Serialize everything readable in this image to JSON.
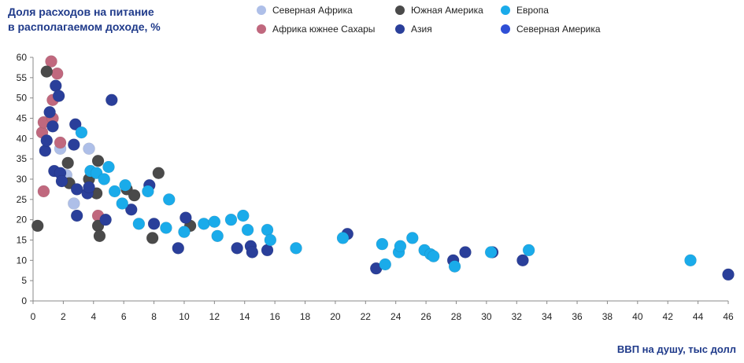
{
  "chart_data": {
    "type": "scatter",
    "title_lines": [
      "Доля расходов на питание",
      "в располагаемом доходе, %"
    ],
    "xlabel": "ВВП на душу, тыс долл",
    "ylabel": "",
    "xlim": [
      0,
      46
    ],
    "ylim": [
      0,
      60
    ],
    "x_ticks": [
      "0",
      "2",
      "4",
      "6",
      "8",
      "10",
      "12",
      "14",
      "16",
      "18",
      "20",
      "22",
      "24",
      "26",
      "28",
      "30",
      "32",
      "34",
      "36",
      "38",
      "40",
      "42",
      "44",
      "46"
    ],
    "y_ticks": [
      "0",
      "5",
      "10",
      "15",
      "20",
      "25",
      "30",
      "35",
      "40",
      "45",
      "50",
      "55",
      "60"
    ],
    "grid": false,
    "legend_position": "top",
    "series": [
      {
        "name": "Северная Африка",
        "color": "#aebfe8",
        "points": [
          [
            1.8,
            37.5
          ],
          [
            2.2,
            31
          ],
          [
            2.7,
            24
          ],
          [
            3.7,
            37.5
          ]
        ]
      },
      {
        "name": "Африка южнее Сахары",
        "color": "#c0687e",
        "points": [
          [
            0.6,
            41.5
          ],
          [
            0.7,
            44
          ],
          [
            0.7,
            27
          ],
          [
            1.2,
            59
          ],
          [
            1.3,
            49.5
          ],
          [
            1.3,
            45
          ],
          [
            1.6,
            56
          ],
          [
            1.8,
            39
          ],
          [
            4.3,
            21
          ]
        ]
      },
      {
        "name": "Южная Америка",
        "color": "#4a4a4a",
        "points": [
          [
            0.3,
            18.5
          ],
          [
            0.9,
            56.5
          ],
          [
            2.3,
            34
          ],
          [
            2.4,
            29
          ],
          [
            3.7,
            30
          ],
          [
            4.2,
            26.5
          ],
          [
            4.3,
            34.5
          ],
          [
            4.3,
            18.5
          ],
          [
            4.4,
            16
          ],
          [
            6.2,
            27.5
          ],
          [
            6.7,
            26
          ],
          [
            7.9,
            15.5
          ],
          [
            8.3,
            31.5
          ],
          [
            10.4,
            18.5
          ]
        ]
      },
      {
        "name": "Азия",
        "color": "#2a3f9a",
        "points": [
          [
            0.8,
            37
          ],
          [
            0.9,
            39.5
          ],
          [
            1.1,
            46.5
          ],
          [
            1.3,
            43
          ],
          [
            1.4,
            32
          ],
          [
            1.5,
            53
          ],
          [
            1.7,
            50.5
          ],
          [
            1.8,
            31.5
          ],
          [
            1.9,
            29.5
          ],
          [
            2.7,
            38.5
          ],
          [
            2.8,
            43.5
          ],
          [
            2.9,
            21
          ],
          [
            2.9,
            27.5
          ],
          [
            3.6,
            26.5
          ],
          [
            3.7,
            28
          ],
          [
            4.8,
            20
          ],
          [
            5.2,
            49.5
          ],
          [
            6.5,
            22.5
          ],
          [
            7.7,
            28.5
          ],
          [
            8,
            19
          ],
          [
            9.6,
            13
          ],
          [
            10.1,
            20.5
          ],
          [
            13.5,
            13
          ],
          [
            14.4,
            13.5
          ],
          [
            14.5,
            12
          ],
          [
            15.5,
            12.5
          ],
          [
            20.8,
            16.5
          ],
          [
            22.7,
            8
          ],
          [
            27.8,
            10
          ],
          [
            28.6,
            12
          ],
          [
            30.4,
            12
          ],
          [
            32.4,
            10
          ],
          [
            46,
            6.5
          ]
        ]
      },
      {
        "name": "Европа",
        "color": "#1aabea",
        "points": [
          [
            3.2,
            41.5
          ],
          [
            3.8,
            32
          ],
          [
            4.2,
            31.5
          ],
          [
            4.7,
            30
          ],
          [
            5,
            33
          ],
          [
            5.4,
            27
          ],
          [
            5.9,
            24
          ],
          [
            6.1,
            28.5
          ],
          [
            7,
            19
          ],
          [
            7.6,
            27
          ],
          [
            8.8,
            18
          ],
          [
            9,
            25
          ],
          [
            10,
            17
          ],
          [
            11.3,
            19
          ],
          [
            12,
            19.5
          ],
          [
            12.2,
            16
          ],
          [
            13.1,
            20
          ],
          [
            13.9,
            21
          ],
          [
            14.2,
            17.5
          ],
          [
            15.5,
            17.5
          ],
          [
            15.7,
            15
          ],
          [
            17.4,
            13
          ],
          [
            20.5,
            15.5
          ],
          [
            23.1,
            14
          ],
          [
            23.3,
            9
          ],
          [
            24.2,
            12
          ],
          [
            24.3,
            13.5
          ],
          [
            25.1,
            15.5
          ],
          [
            25.9,
            12.5
          ],
          [
            26.3,
            11.5
          ],
          [
            26.5,
            11
          ],
          [
            27.9,
            8.5
          ],
          [
            30.3,
            12
          ],
          [
            32.8,
            12.5
          ],
          [
            43.5,
            10
          ]
        ]
      },
      {
        "name": "Северная Америка",
        "color": "#2f4fd6",
        "points": []
      }
    ]
  }
}
